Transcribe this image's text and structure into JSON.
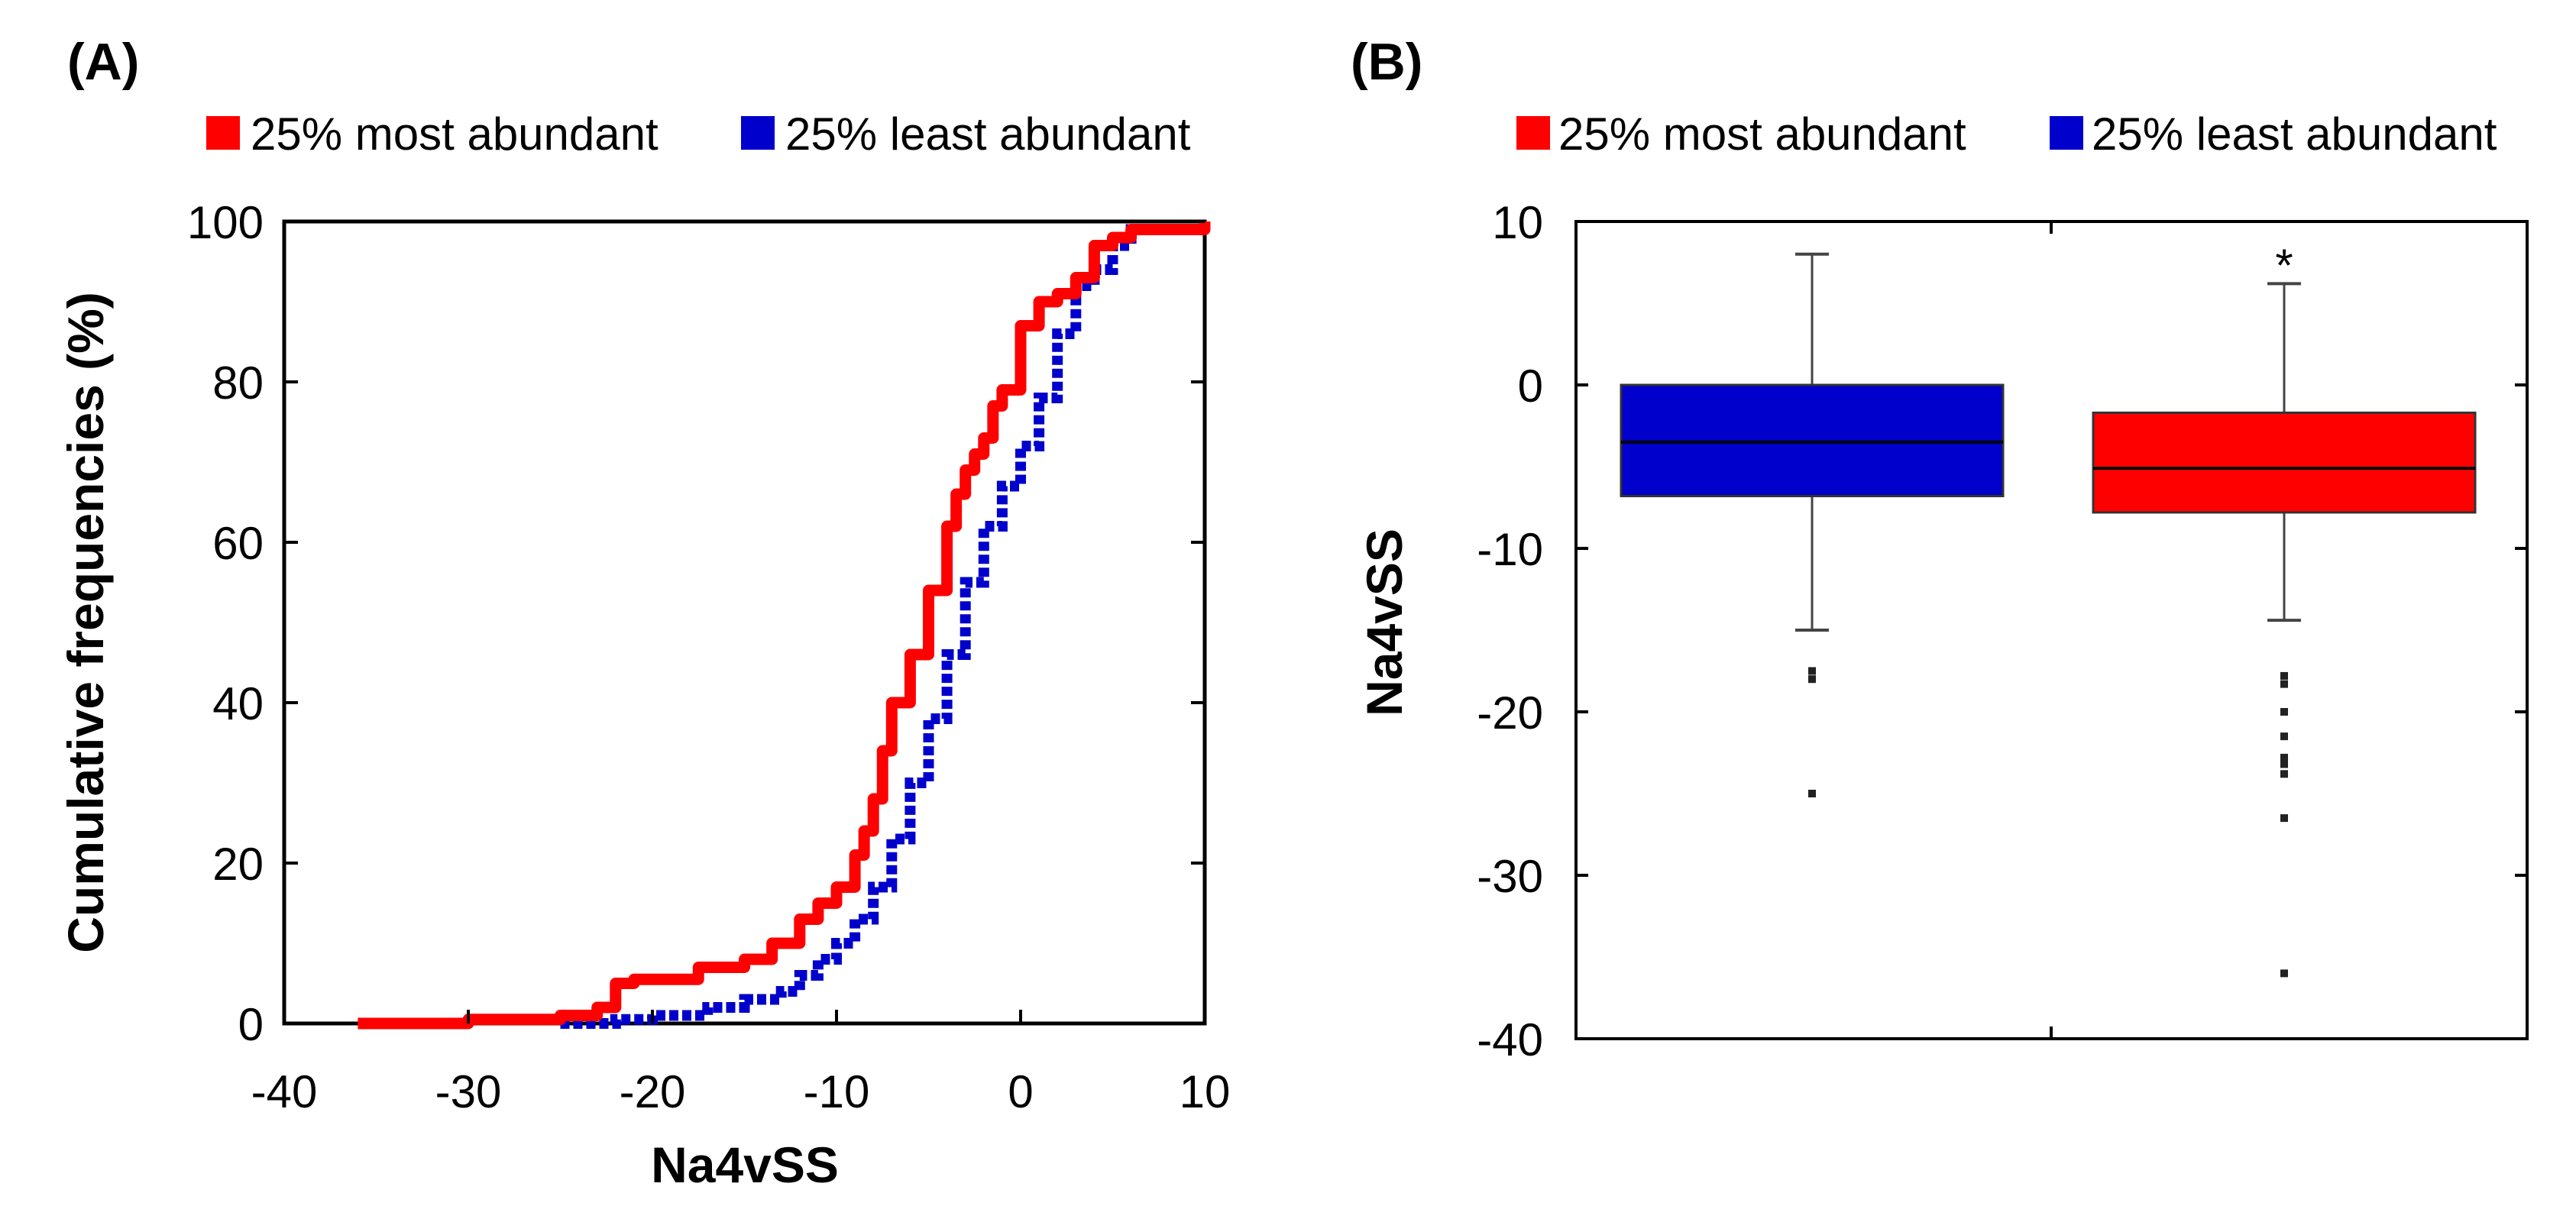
{
  "colors": {
    "most": "#ff0000",
    "least": "#0000cc",
    "axis": "#000000"
  },
  "chart_data": [
    {
      "panel_label": "(A)",
      "type": "line",
      "xlabel": "Na4vSS",
      "ylabel": "Cumulative frequencies (%)",
      "xlim": [
        -40,
        10
      ],
      "ylim": [
        0,
        100
      ],
      "xticks": [
        "-40",
        "-30",
        "-20",
        "-10",
        "0",
        "10"
      ],
      "yticks": [
        "0",
        "20",
        "40",
        "60",
        "80",
        "100"
      ],
      "legend": [
        "25% most abundant",
        "25% least abundant"
      ],
      "series": [
        {
          "name": "25% most abundant",
          "style": "solid",
          "x": [
            -36,
            -30,
            -25,
            -23,
            -22,
            -21,
            -20,
            -17.5,
            -15,
            -13.5,
            -12,
            -11,
            -10,
            -9,
            -8.5,
            -8,
            -7.5,
            -7,
            -6,
            -5,
            -4,
            -3.5,
            -3,
            -2.5,
            -2,
            -1.5,
            -1,
            0,
            1,
            2,
            3,
            4,
            5,
            6,
            10
          ],
          "y": [
            0,
            0.5,
            1,
            2,
            5,
            5.5,
            5.5,
            7,
            8,
            10,
            13,
            15,
            17,
            21,
            24,
            28,
            34,
            40,
            46,
            54,
            62,
            66,
            69,
            71,
            73,
            77,
            79,
            87,
            90,
            91,
            93,
            97,
            98,
            99,
            100
          ]
        },
        {
          "name": "25% least abundant",
          "style": "dotted",
          "x": [
            -25,
            -22,
            -20,
            -17,
            -15,
            -13,
            -12,
            -11,
            -10,
            -9,
            -8,
            -7,
            -6,
            -5,
            -4,
            -3,
            -2,
            -1,
            0,
            1,
            2,
            3,
            4,
            5,
            6,
            10
          ],
          "y": [
            0,
            0.5,
            1,
            2,
            3,
            4,
            6,
            8,
            10,
            13,
            17,
            23,
            30,
            38,
            46,
            55,
            62,
            67,
            72,
            78,
            86,
            92,
            94,
            97,
            99,
            100
          ]
        }
      ]
    },
    {
      "panel_label": "(B)",
      "type": "box",
      "xlabel": "",
      "ylabel": "Na4vSS",
      "ylim": [
        -40,
        10
      ],
      "yticks": [
        "10",
        "0",
        "-10",
        "-20",
        "-30",
        "-40"
      ],
      "legend": [
        "25% most abundant",
        "25% least abundant"
      ],
      "annotation": "*",
      "boxes": [
        {
          "name": "25% least abundant",
          "whisker_low": -15,
          "q1": -6.8,
          "median": -3.5,
          "q3": 0,
          "whisker_high": 8,
          "outliers": [
            -17.5,
            -18,
            -25
          ]
        },
        {
          "name": "25% most abundant",
          "whisker_low": -14.4,
          "q1": -7.8,
          "median": -5.1,
          "q3": -1.7,
          "whisker_high": 6.2,
          "outliers": [
            -17.8,
            -18.3,
            -20,
            -21.5,
            -22.8,
            -23.2,
            -23.8,
            -26.5,
            -36
          ]
        }
      ]
    }
  ]
}
